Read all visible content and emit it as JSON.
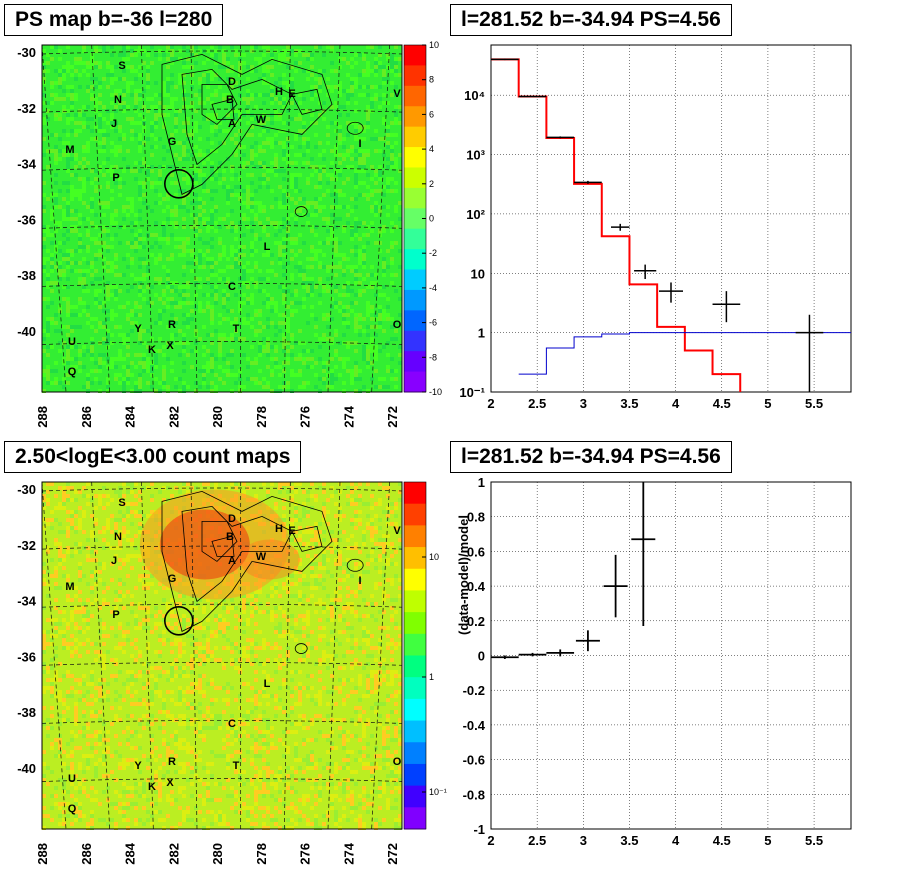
{
  "titles": {
    "map_top": "PS map b=-36 l=280",
    "spec_top": "l=281.52 b=-34.94 PS=4.56",
    "map_bottom": "2.50<logE<3.00 count maps",
    "resid_bottom": "l=281.52 b=-34.94 PS=4.56"
  },
  "maps": {
    "lat_ticks": [
      "-30",
      "-32",
      "-34",
      "-36",
      "-38",
      "-40"
    ],
    "lon_ticks": [
      "288",
      "286",
      "284",
      "282",
      "280",
      "278",
      "276",
      "274",
      "272"
    ],
    "source_labels": [
      {
        "t": "S",
        "c": [
          1,
          1
        ]
      },
      {
        "t": "N",
        "c": [
          1,
          2
        ]
      },
      {
        "t": "J",
        "c": [
          1,
          3
        ]
      },
      {
        "t": "M",
        "c": [
          0,
          4
        ]
      },
      {
        "t": "P",
        "c": [
          1,
          5
        ]
      },
      {
        "t": "D",
        "c": [
          3,
          1
        ]
      },
      {
        "t": "B",
        "c": [
          3,
          2
        ]
      },
      {
        "t": "H",
        "c": [
          4,
          2
        ]
      },
      {
        "t": "E",
        "c": [
          5,
          2
        ]
      },
      {
        "t": "A",
        "c": [
          3,
          3
        ]
      },
      {
        "t": "W",
        "c": [
          4,
          4
        ]
      },
      {
        "t": "G",
        "c": [
          2,
          4
        ]
      },
      {
        "t": "I",
        "c": [
          6,
          4
        ]
      },
      {
        "t": "L",
        "c": [
          4,
          6
        ]
      },
      {
        "t": "C",
        "c": [
          3,
          7
        ]
      },
      {
        "t": "R",
        "c": [
          2,
          8
        ]
      },
      {
        "t": "Y",
        "c": [
          1,
          8
        ]
      },
      {
        "t": "T",
        "c": [
          3,
          8
        ]
      },
      {
        "t": "O",
        "c": [
          7,
          8
        ]
      },
      {
        "t": "U",
        "c": [
          0,
          9
        ]
      },
      {
        "t": "K",
        "c": [
          2,
          9
        ]
      },
      {
        "t": "X",
        "c": [
          2,
          9
        ]
      },
      {
        "t": "Q",
        "c": [
          0,
          10
        ]
      },
      {
        "t": "V",
        "c": [
          7,
          2
        ]
      }
    ],
    "scale_top": {
      "ticks": [
        "10",
        "8",
        "6",
        "4",
        "2",
        "0",
        "-2",
        "-4",
        "-6",
        "-8",
        "-10"
      ],
      "colors": [
        "#ff0000",
        "#ff3300",
        "#ff6600",
        "#ff9900",
        "#ffcc00",
        "#ffff00",
        "#ccff00",
        "#99ff33",
        "#66ff66",
        "#33ff99",
        "#00ffcc",
        "#00ccff",
        "#0099ff",
        "#0066ff",
        "#3333ff",
        "#6600ff",
        "#8800ff"
      ]
    },
    "scale_bottom": {
      "ticks": [
        "10",
        "1",
        "10⁻¹"
      ],
      "colors": [
        "#ff0000",
        "#ff4000",
        "#ff8000",
        "#ffbf00",
        "#ffff00",
        "#bfff00",
        "#80ff00",
        "#40ff40",
        "#00ff80",
        "#00ffbf",
        "#00ffff",
        "#00bfff",
        "#0080ff",
        "#0040ff",
        "#4000ff",
        "#8000ff"
      ]
    },
    "top_bg": "#33ee33",
    "bottom_bg": "#bbee22",
    "bottom_hot": "#ee3311"
  },
  "chart_data": [
    {
      "type": "line",
      "title": "l=281.52 b=-34.94 PS=4.56",
      "xlim": [
        2,
        5.9
      ],
      "ylim": [
        0.1,
        70000
      ],
      "yscale": "log",
      "xticks": [
        "2",
        "2.5",
        "3",
        "3.5",
        "4",
        "4.5",
        "5",
        "5.5"
      ],
      "yticks": [
        "10⁻¹",
        "1",
        "10",
        "10²",
        "10³",
        "10⁴"
      ],
      "series": [
        {
          "kind": "model-step",
          "color": "#ff0000",
          "edges": [
            2.0,
            2.3,
            2.6,
            2.9,
            3.2,
            3.5,
            3.8,
            4.1,
            4.4,
            4.7
          ],
          "values": [
            40000,
            9500,
            1900,
            320,
            42,
            6.5,
            1.25,
            0.5,
            0.2
          ]
        },
        {
          "kind": "background-step",
          "color": "#0000cc",
          "edges": [
            2.3,
            2.6,
            2.9,
            3.2,
            3.5,
            5.9
          ],
          "values": [
            0.2,
            0.55,
            0.85,
            0.95,
            1.0
          ]
        },
        {
          "kind": "data",
          "color": "#000000",
          "points": [
            {
              "x": 2.15,
              "y": 40000,
              "xerr": 0.15,
              "ylo": 39000,
              "yhi": 41000
            },
            {
              "x": 2.45,
              "y": 9500,
              "xerr": 0.15,
              "ylo": 9300,
              "yhi": 9700
            },
            {
              "x": 2.75,
              "y": 1950,
              "xerr": 0.15,
              "ylo": 1880,
              "yhi": 2020
            },
            {
              "x": 3.05,
              "y": 340,
              "xerr": 0.15,
              "ylo": 320,
              "yhi": 360
            },
            {
              "x": 3.4,
              "y": 60,
              "xerr": 0.1,
              "ylo": 52,
              "yhi": 68
            },
            {
              "x": 3.67,
              "y": 11,
              "xerr": 0.12,
              "ylo": 8,
              "yhi": 14
            },
            {
              "x": 3.95,
              "y": 5,
              "xerr": 0.13,
              "ylo": 3.2,
              "yhi": 7
            },
            {
              "x": 4.55,
              "y": 3,
              "xerr": 0.15,
              "ylo": 1.5,
              "yhi": 5
            },
            {
              "x": 5.45,
              "y": 1,
              "xerr": 0.15,
              "ylo": 0.1,
              "yhi": 2
            }
          ]
        }
      ]
    },
    {
      "type": "scatter",
      "title": "l=281.52 b=-34.94 PS=4.56",
      "ylabel": "(data-model)/model",
      "xlim": [
        2,
        5.9
      ],
      "ylim": [
        -1,
        1
      ],
      "xticks": [
        "2",
        "2.5",
        "3",
        "3.5",
        "4",
        "4.5",
        "5",
        "5.5"
      ],
      "yticks": [
        "-1",
        "-0.8",
        "-0.6",
        "-0.4",
        "-0.2",
        "0",
        "0.2",
        "0.4",
        "0.6",
        "0.8",
        "1"
      ],
      "points": [
        {
          "x": 2.15,
          "y": -0.01,
          "xerr": 0.15,
          "yerr": 0.01
        },
        {
          "x": 2.45,
          "y": 0.005,
          "xerr": 0.15,
          "yerr": 0.01
        },
        {
          "x": 2.75,
          "y": 0.015,
          "xerr": 0.15,
          "yerr": 0.02
        },
        {
          "x": 3.05,
          "y": 0.085,
          "xerr": 0.13,
          "yerr": 0.06
        },
        {
          "x": 3.35,
          "y": 0.4,
          "xerr": 0.13,
          "yerr": 0.18
        },
        {
          "x": 3.65,
          "y": 0.67,
          "xerr": 0.13,
          "yerr": 0.5
        }
      ]
    }
  ]
}
